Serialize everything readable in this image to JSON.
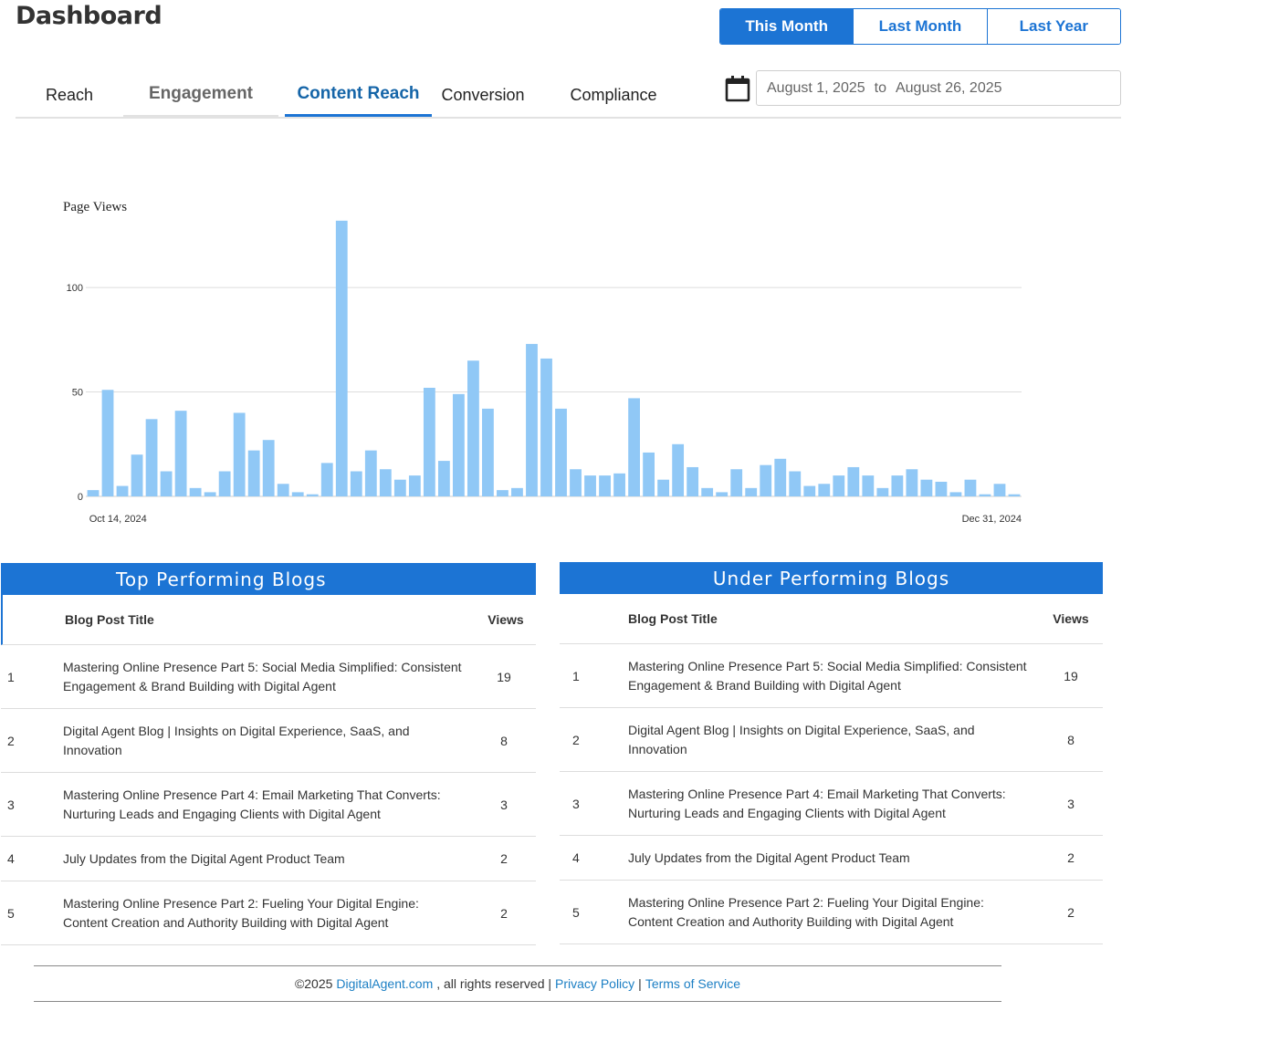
{
  "header": {
    "title": "Dashboard"
  },
  "range": {
    "buttons": [
      {
        "label": "This Month",
        "active": true
      },
      {
        "label": "Last Month",
        "active": false
      },
      {
        "label": "Last Year",
        "active": false
      }
    ]
  },
  "tabs": [
    {
      "label": "Reach"
    },
    {
      "label": "Engagement"
    },
    {
      "label": "Content Reach",
      "active": true
    },
    {
      "label": "Conversion"
    },
    {
      "label": "Compliance"
    }
  ],
  "date_range": {
    "icon": "calendar-icon",
    "start": "August 1, 2025",
    "separator": "to",
    "end": "August 26, 2025"
  },
  "chart_data": {
    "type": "bar",
    "title": "Page Views",
    "bar_color": "#90c8f6",
    "ylim": [
      0,
      135
    ],
    "yticks": [
      0,
      50,
      100
    ],
    "grid": true,
    "x_tick_labels": [
      "Oct 14, 2024",
      "Dec 31, 2024"
    ],
    "values": [
      3,
      51,
      5,
      20,
      37,
      12,
      41,
      4,
      2,
      12,
      40,
      22,
      27,
      6,
      2,
      1,
      16,
      132,
      12,
      22,
      13,
      8,
      10,
      52,
      17,
      49,
      65,
      42,
      3,
      4,
      73,
      66,
      42,
      13,
      10,
      10,
      11,
      47,
      21,
      8,
      25,
      14,
      4,
      2,
      13,
      4,
      15,
      18,
      12,
      5,
      6,
      10,
      14,
      10,
      4,
      10,
      13,
      8,
      7,
      2,
      8,
      1,
      6,
      1
    ]
  },
  "top_blogs": {
    "heading": "Top Performing Blogs",
    "col_title": "Blog Post Title",
    "col_views": "Views",
    "rows": [
      {
        "rank": "1",
        "title": "Mastering Online Presence Part 5: Social Media Simplified: Consistent Engagement & Brand Building with Digital Agent",
        "views": "19"
      },
      {
        "rank": "2",
        "title": "Digital Agent Blog | Insights on Digital Experience, SaaS, and Innovation",
        "views": "8"
      },
      {
        "rank": "3",
        "title": "Mastering Online Presence Part 4: Email Marketing That Converts: Nurturing Leads and Engaging Clients with Digital Agent",
        "views": "3"
      },
      {
        "rank": "4",
        "title": "July Updates from the Digital Agent Product Team",
        "views": "2"
      },
      {
        "rank": "5",
        "title": "Mastering Online Presence Part 2: Fueling Your Digital Engine: Content Creation and Authority Building with Digital Agent",
        "views": "2"
      }
    ]
  },
  "under_blogs": {
    "heading": "Under Performing  Blogs",
    "col_title": "Blog Post Title",
    "col_views": "Views",
    "rows": [
      {
        "rank": "1",
        "title": "Mastering Online Presence Part 5: Social Media Simplified: Consistent Engagement & Brand Building with Digital Agent",
        "views": "19"
      },
      {
        "rank": "2",
        "title": "Digital Agent Blog | Insights on Digital Experience, SaaS, and Innovation",
        "views": "8"
      },
      {
        "rank": "3",
        "title": "Mastering Online Presence Part 4: Email Marketing That Converts: Nurturing Leads and Engaging Clients with Digital Agent",
        "views": "3"
      },
      {
        "rank": "4",
        "title": "July Updates from the Digital Agent Product Team",
        "views": "2"
      },
      {
        "rank": "5",
        "title": "Mastering Online Presence Part 2: Fueling Your Digital Engine: Content Creation and Authority Building with Digital Agent",
        "views": "2"
      }
    ]
  },
  "footer": {
    "copyright": "©2025",
    "site_link": "DigitalAgent.com",
    "rights": ", all rights reserved |",
    "privacy": "Privacy Policy",
    "sep": "|",
    "terms": "Terms of Service"
  }
}
